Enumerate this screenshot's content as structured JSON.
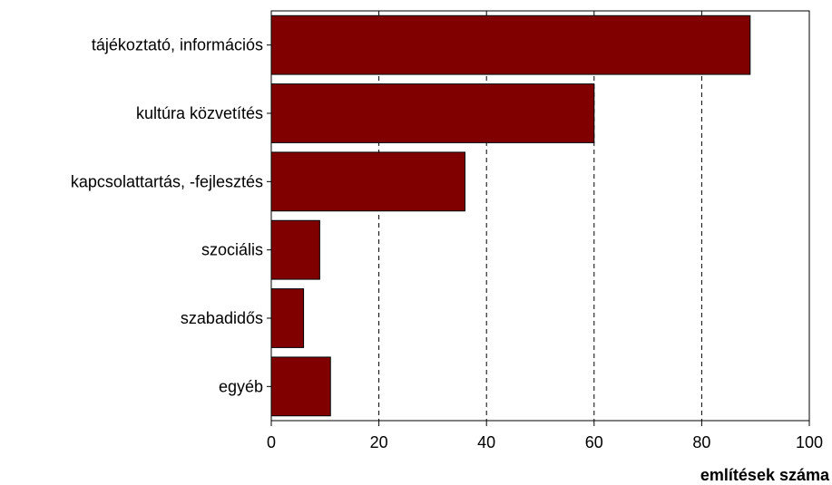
{
  "chart_data": {
    "type": "bar",
    "orientation": "horizontal",
    "categories": [
      "tájékoztató, információs",
      "kultúra közvetítés",
      "kapcsolattartás, -fejlesztés",
      "szociális",
      "szabadidős",
      "egyéb"
    ],
    "values": [
      89,
      60,
      36,
      9,
      6,
      11
    ],
    "xlabel": "említések száma",
    "ylabel": "",
    "xlim": [
      0,
      100
    ],
    "xticks": [
      0,
      20,
      40,
      60,
      80,
      100
    ],
    "grid": "vertical-dashed",
    "legend": "none",
    "bar_color": "#800000"
  }
}
